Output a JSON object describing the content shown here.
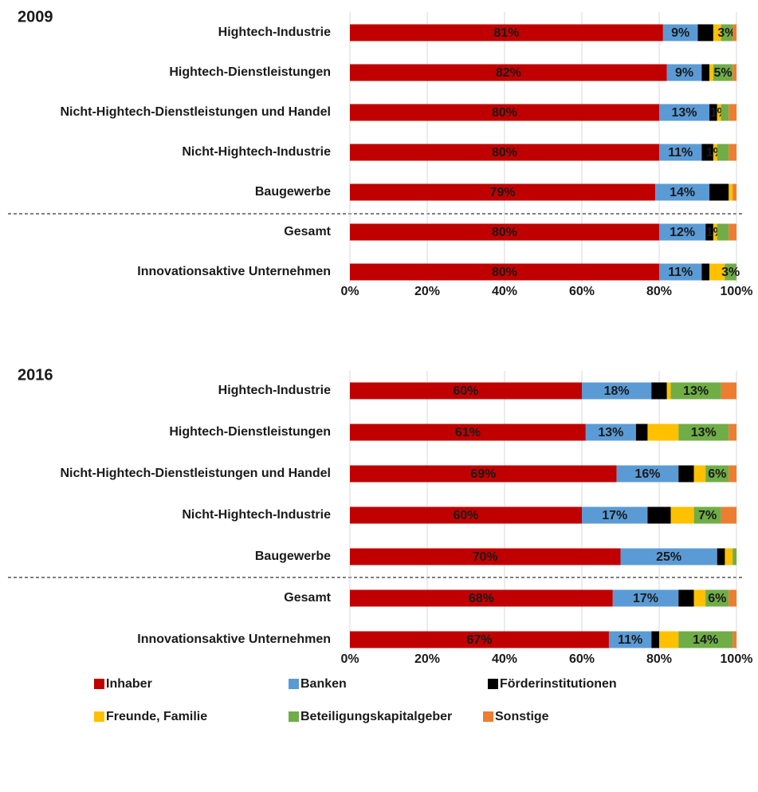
{
  "chart_data": [
    {
      "type": "stacked-bar-horizontal",
      "title": "2009",
      "categories": [
        "Hightech-Industrie",
        "Hightech-Dienstleistungen",
        "Nicht-Hightech-Dienstleistungen und Handel",
        "Nicht-Hightech-Industrie",
        "Baugewerbe",
        "Gesamt",
        "Innovationsaktive Unternehmen"
      ],
      "xlim": [
        0,
        100
      ],
      "xticks": [
        {
          "value": 0,
          "label": "0%"
        },
        {
          "value": 20,
          "label": "20%"
        },
        {
          "value": 40,
          "label": "40%"
        },
        {
          "value": 60,
          "label": "60%"
        },
        {
          "value": 80,
          "label": "80%"
        },
        {
          "value": 100,
          "label": "100%"
        }
      ],
      "grid": true,
      "series": [
        {
          "name": "Inhaber",
          "color": "#c00000",
          "values": [
            81,
            82,
            80,
            80,
            79,
            80,
            80
          ],
          "value_labels": [
            "81%",
            "82%",
            "80%",
            "80%",
            "79%",
            "80%",
            "80%"
          ]
        },
        {
          "name": "Banken",
          "color": "#5b9bd5",
          "values": [
            9,
            9,
            13,
            11,
            14,
            12,
            11
          ],
          "value_labels": [
            "9%",
            "9%",
            "13%",
            "11%",
            "14%",
            "12%",
            "11%"
          ]
        },
        {
          "name": "Förderinstitutionen",
          "color": "#000000",
          "values": [
            4,
            2,
            2,
            3,
            5,
            2,
            2
          ]
        },
        {
          "name": "Freunde, Familie",
          "color": "#ffc000",
          "values": [
            2,
            1,
            1,
            1,
            1,
            1,
            4
          ],
          "value_labels": [
            null,
            null,
            "1%",
            "1%",
            null,
            "1%",
            null
          ]
        },
        {
          "name": "Beteiligungskapitalgeber",
          "color": "#70ad47",
          "values": [
            3,
            5,
            2,
            3,
            0,
            3,
            3
          ],
          "value_labels": [
            "3%",
            "5%",
            null,
            null,
            null,
            null,
            "3%"
          ]
        },
        {
          "name": "Sonstige",
          "color": "#ed7d31",
          "values": [
            1,
            1,
            2,
            2,
            1,
            2,
            0
          ]
        }
      ]
    },
    {
      "type": "stacked-bar-horizontal",
      "title": "2016",
      "categories": [
        "Hightech-Industrie",
        "Hightech-Dienstleistungen",
        "Nicht-Hightech-Dienstleistungen und Handel",
        "Nicht-Hightech-Industrie",
        "Baugewerbe",
        "Gesamt",
        "Innovationsaktive Unternehmen"
      ],
      "xlim": [
        0,
        100
      ],
      "xticks": [
        {
          "value": 0,
          "label": "0%"
        },
        {
          "value": 20,
          "label": "20%"
        },
        {
          "value": 40,
          "label": "40%"
        },
        {
          "value": 60,
          "label": "60%"
        },
        {
          "value": 80,
          "label": "80%"
        },
        {
          "value": 100,
          "label": "100%"
        }
      ],
      "grid": true,
      "series": [
        {
          "color": "#c00000",
          "values": [
            60,
            61,
            69,
            60,
            70,
            68,
            67
          ],
          "value_labels": [
            "60%",
            "61%",
            "69%",
            "60%",
            "70%",
            "68%",
            "67%"
          ]
        },
        {
          "color": "#5b9bd5",
          "values": [
            18,
            13,
            16,
            17,
            25,
            17,
            11
          ],
          "value_labels": [
            "18%",
            "13%",
            "16%",
            "17%",
            "25%",
            "17%",
            "11%"
          ]
        },
        {
          "color": "#000000",
          "values": [
            4,
            3,
            4,
            6,
            2,
            4,
            2
          ]
        },
        {
          "color": "#ffc000",
          "values": [
            1,
            8,
            3,
            6,
            2,
            3,
            5
          ]
        },
        {
          "color": "#70ad47",
          "values": [
            13,
            13,
            6,
            7,
            1,
            6,
            14
          ],
          "value_labels": [
            "13%",
            "13%",
            "6%",
            "7%",
            null,
            "6%",
            "14%"
          ]
        },
        {
          "color": "#ed7d31",
          "values": [
            4,
            2,
            2,
            4,
            0,
            2,
            1
          ]
        }
      ]
    }
  ]
}
